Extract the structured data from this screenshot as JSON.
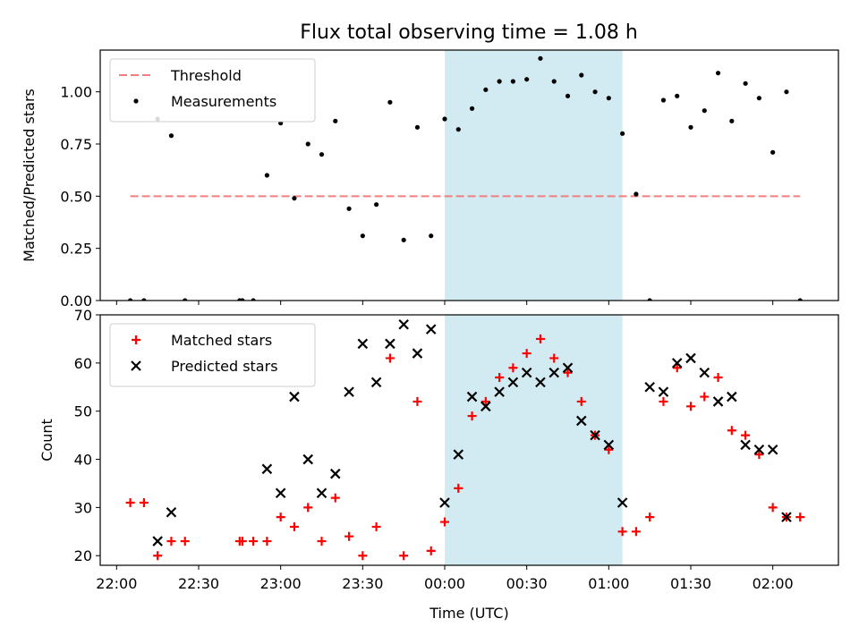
{
  "figure": {
    "title": "Flux total observing time = 1.08 h"
  },
  "chart_data": [
    {
      "type": "scatter",
      "title": "Flux total observing time = 1.08 h",
      "xlabel": "",
      "ylabel": "Matched/Predicted stars",
      "xlim": [
        "21:54",
        "02:24"
      ],
      "ylim": [
        0,
        1.2
      ],
      "yticks": [
        "0.00",
        "0.25",
        "0.50",
        "0.75",
        "1.00"
      ],
      "grid": false,
      "legend_position": "upper-left",
      "highlight_span": {
        "from": "00:00",
        "to": "01:05",
        "color": "#add8e6"
      },
      "threshold": {
        "name": "Threshold",
        "value": 0.5,
        "from": "22:05",
        "to": "02:10",
        "color": "#f08080",
        "style": "dashed"
      },
      "series": [
        {
          "name": "Measurements",
          "marker": "dot",
          "color": "#000000",
          "points": [
            [
              "22:05",
              0.0
            ],
            [
              "22:10",
              0.0
            ],
            [
              "22:15",
              0.87
            ],
            [
              "22:20",
              0.79
            ],
            [
              "22:25",
              0.0
            ],
            [
              "22:45",
              0.0
            ],
            [
              "22:46",
              0.0
            ],
            [
              "22:50",
              0.0
            ],
            [
              "22:55",
              0.6
            ],
            [
              "23:00",
              0.85
            ],
            [
              "23:05",
              0.49
            ],
            [
              "23:10",
              0.75
            ],
            [
              "23:15",
              0.7
            ],
            [
              "23:20",
              0.86
            ],
            [
              "23:25",
              0.44
            ],
            [
              "23:30",
              0.31
            ],
            [
              "23:35",
              0.46
            ],
            [
              "23:40",
              0.95
            ],
            [
              "23:45",
              0.29
            ],
            [
              "23:50",
              0.83
            ],
            [
              "23:55",
              0.31
            ],
            [
              "00:00",
              0.87
            ],
            [
              "00:05",
              0.82
            ],
            [
              "00:10",
              0.92
            ],
            [
              "00:15",
              1.01
            ],
            [
              "00:20",
              1.05
            ],
            [
              "00:25",
              1.05
            ],
            [
              "00:30",
              1.06
            ],
            [
              "00:35",
              1.16
            ],
            [
              "00:40",
              1.05
            ],
            [
              "00:45",
              0.98
            ],
            [
              "00:50",
              1.08
            ],
            [
              "00:55",
              1.0
            ],
            [
              "01:00",
              0.97
            ],
            [
              "01:05",
              0.8
            ],
            [
              "01:10",
              0.51
            ],
            [
              "01:15",
              0.0
            ],
            [
              "01:20",
              0.96
            ],
            [
              "01:25",
              0.98
            ],
            [
              "01:30",
              0.83
            ],
            [
              "01:35",
              0.91
            ],
            [
              "01:40",
              1.09
            ],
            [
              "01:45",
              0.86
            ],
            [
              "01:50",
              1.04
            ],
            [
              "01:55",
              0.97
            ],
            [
              "02:00",
              0.71
            ],
            [
              "02:05",
              1.0
            ],
            [
              "02:10",
              0.0
            ]
          ]
        }
      ]
    },
    {
      "type": "scatter",
      "title": "",
      "xlabel": "Time (UTC)",
      "ylabel": "Count",
      "xlim": [
        "21:54",
        "02:24"
      ],
      "ylim": [
        18,
        70
      ],
      "yticks": [
        "20",
        "30",
        "40",
        "50",
        "60",
        "70"
      ],
      "xticks": [
        "22:00",
        "22:30",
        "23:00",
        "23:30",
        "00:00",
        "00:30",
        "01:00",
        "01:30",
        "02:00"
      ],
      "grid": false,
      "legend_position": "upper-left",
      "highlight_span": {
        "from": "00:00",
        "to": "01:05",
        "color": "#add8e6"
      },
      "series": [
        {
          "name": "Matched stars",
          "marker": "plus",
          "color": "#ff0000",
          "points": [
            [
              "22:05",
              31
            ],
            [
              "22:10",
              31
            ],
            [
              "22:15",
              20
            ],
            [
              "22:20",
              23
            ],
            [
              "22:25",
              23
            ],
            [
              "22:45",
              23
            ],
            [
              "22:46",
              23
            ],
            [
              "22:50",
              23
            ],
            [
              "22:55",
              23
            ],
            [
              "23:00",
              28
            ],
            [
              "23:05",
              26
            ],
            [
              "23:10",
              30
            ],
            [
              "23:15",
              23
            ],
            [
              "23:20",
              32
            ],
            [
              "23:25",
              24
            ],
            [
              "23:30",
              20
            ],
            [
              "23:35",
              26
            ],
            [
              "23:40",
              61
            ],
            [
              "23:45",
              20
            ],
            [
              "23:50",
              52
            ],
            [
              "23:55",
              21
            ],
            [
              "00:00",
              27
            ],
            [
              "00:05",
              34
            ],
            [
              "00:10",
              49
            ],
            [
              "00:15",
              52
            ],
            [
              "00:20",
              57
            ],
            [
              "00:25",
              59
            ],
            [
              "00:30",
              62
            ],
            [
              "00:35",
              65
            ],
            [
              "00:40",
              61
            ],
            [
              "00:45",
              58
            ],
            [
              "00:50",
              52
            ],
            [
              "00:55",
              45
            ],
            [
              "01:00",
              42
            ],
            [
              "01:05",
              25
            ],
            [
              "01:10",
              25
            ],
            [
              "01:15",
              28
            ],
            [
              "01:20",
              52
            ],
            [
              "01:25",
              59
            ],
            [
              "01:30",
              51
            ],
            [
              "01:35",
              53
            ],
            [
              "01:40",
              57
            ],
            [
              "01:45",
              46
            ],
            [
              "01:50",
              45
            ],
            [
              "01:55",
              41
            ],
            [
              "02:00",
              30
            ],
            [
              "02:05",
              28
            ],
            [
              "02:10",
              28
            ]
          ]
        },
        {
          "name": "Predicted stars",
          "marker": "x",
          "color": "#000000",
          "points": [
            [
              "22:15",
              23
            ],
            [
              "22:20",
              29
            ],
            [
              "22:55",
              38
            ],
            [
              "23:00",
              33
            ],
            [
              "23:05",
              53
            ],
            [
              "23:10",
              40
            ],
            [
              "23:15",
              33
            ],
            [
              "23:20",
              37
            ],
            [
              "23:25",
              54
            ],
            [
              "23:30",
              64
            ],
            [
              "23:35",
              56
            ],
            [
              "23:40",
              64
            ],
            [
              "23:45",
              68
            ],
            [
              "23:50",
              62
            ],
            [
              "23:55",
              67
            ],
            [
              "00:00",
              31
            ],
            [
              "00:05",
              41
            ],
            [
              "00:10",
              53
            ],
            [
              "00:15",
              51
            ],
            [
              "00:20",
              54
            ],
            [
              "00:25",
              56
            ],
            [
              "00:30",
              58
            ],
            [
              "00:35",
              56
            ],
            [
              "00:40",
              58
            ],
            [
              "00:45",
              59
            ],
            [
              "00:50",
              48
            ],
            [
              "00:55",
              45
            ],
            [
              "01:00",
              43
            ],
            [
              "01:05",
              31
            ],
            [
              "01:15",
              55
            ],
            [
              "01:20",
              54
            ],
            [
              "01:25",
              60
            ],
            [
              "01:30",
              61
            ],
            [
              "01:35",
              58
            ],
            [
              "01:40",
              52
            ],
            [
              "01:45",
              53
            ],
            [
              "01:50",
              43
            ],
            [
              "01:55",
              42
            ],
            [
              "02:00",
              42
            ],
            [
              "02:05",
              28
            ]
          ]
        }
      ]
    }
  ]
}
